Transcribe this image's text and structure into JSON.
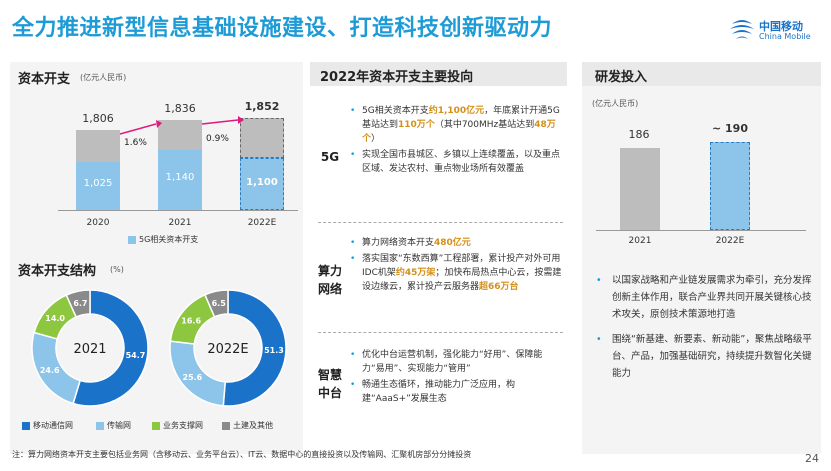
{
  "title": "全力推进新型信息基础设施建设、打造科技创新驱动力",
  "logo": {
    "cn": "中国移动",
    "en": "China Mobile"
  },
  "capex": {
    "title": "资本开支",
    "unit": "(亿元人民币)",
    "legend": "5G相关资本开支",
    "chart_data": {
      "type": "bar",
      "categories": [
        "2020",
        "2021",
        "2022E"
      ],
      "series": [
        {
          "name": "5G相关资本开支",
          "values": [
            1025,
            1140,
            1100
          ]
        }
      ],
      "totals": [
        1806,
        1836,
        1852
      ],
      "growth": [
        "1.6%",
        "0.9%"
      ]
    },
    "labels": {
      "totals": [
        "1,806",
        "1,836",
        "1,852"
      ],
      "fiveg": [
        "1,025",
        "1,140",
        "1,100"
      ]
    }
  },
  "structure": {
    "title": "资本开支结构",
    "unit": "(%)",
    "chart_data": [
      {
        "type": "pie",
        "title": "2021",
        "categories": [
          "移动通信网",
          "传输网",
          "业务支撑网",
          "土建及其他"
        ],
        "values": [
          54.7,
          24.6,
          14.0,
          6.7
        ]
      },
      {
        "type": "pie",
        "title": "2022E",
        "categories": [
          "移动通信网",
          "传输网",
          "业务支撑网",
          "土建及其他"
        ],
        "values": [
          51.3,
          25.6,
          16.6,
          6.5
        ]
      }
    ],
    "labels21": [
      "54.7",
      "24.6",
      "14.0",
      "6.7"
    ],
    "labels22": [
      "51.3",
      "25.6",
      "16.6",
      "6.5"
    ],
    "legend": [
      "移动通信网",
      "传输网",
      "业务支撑网",
      "土建及其他"
    ],
    "colors": [
      "#1a73c8",
      "#8cc4ea",
      "#8dc63f",
      "#8a8a8a"
    ]
  },
  "middle": {
    "title": "2022年资本开支主要投向",
    "sections": [
      {
        "cat": "5G"
      },
      {
        "cat": "算力\n网络"
      },
      {
        "cat": "智慧\n中台"
      }
    ],
    "s1b1a": "5G相关资本开支",
    "s1b1h": "约1,100亿元",
    "s1b1b": "，年底累计开通5G基站达到",
    "s1b1h2": "110万个",
    "s1b1c": "（其中700MHz基站达到",
    "s1b1h3": "48万个",
    "s1b1d": "）",
    "s1b2": "实现全国市县城区、乡镇以上连续覆盖，以及重点区域、发达农村、重点物业场所有效覆盖",
    "s2b1a": "算力网络资本开支",
    "s2b1h": "480亿元",
    "s2b2a": "落实国家“东数西算”工程部署，累计投产对外可用IDC机架",
    "s2b2h": "约45万架",
    "s2b2b": "；加快布局热点中心云，按需建设边缘云，累计投产云服务器",
    "s2b2h2": "超66万台",
    "s3b1": "优化中台运营机制，强化能力“好用”、保障能力“易用”、实现能力“管用”",
    "s3b2": "畅通生态循环，推动能力广泛应用，构建“AaaS+”发展生态"
  },
  "rd": {
    "title": "研发投入",
    "unit": "(亿元人民币)",
    "chart_data": {
      "type": "bar",
      "categories": [
        "2021",
        "2022E"
      ],
      "values": [
        186,
        190
      ]
    },
    "labels": [
      "186",
      "~ 190"
    ],
    "b1": "以国家战略和产业链发展需求为牵引，充分发挥创新主体作用，联合产业界共同开展关键核心技术攻关，原创技术策源地打造",
    "b2": "围绕“新基建、新要素、新动能”，聚焦战略级平台、产品，加强基础研究，持续提升数智化关键能力"
  },
  "note": "注：算力网络资本开支主要包括业务网（含移动云、业务平台云）、IT云、数据中心的直接投资以及传输网、汇聚机房部分分摊投资",
  "page": "24"
}
